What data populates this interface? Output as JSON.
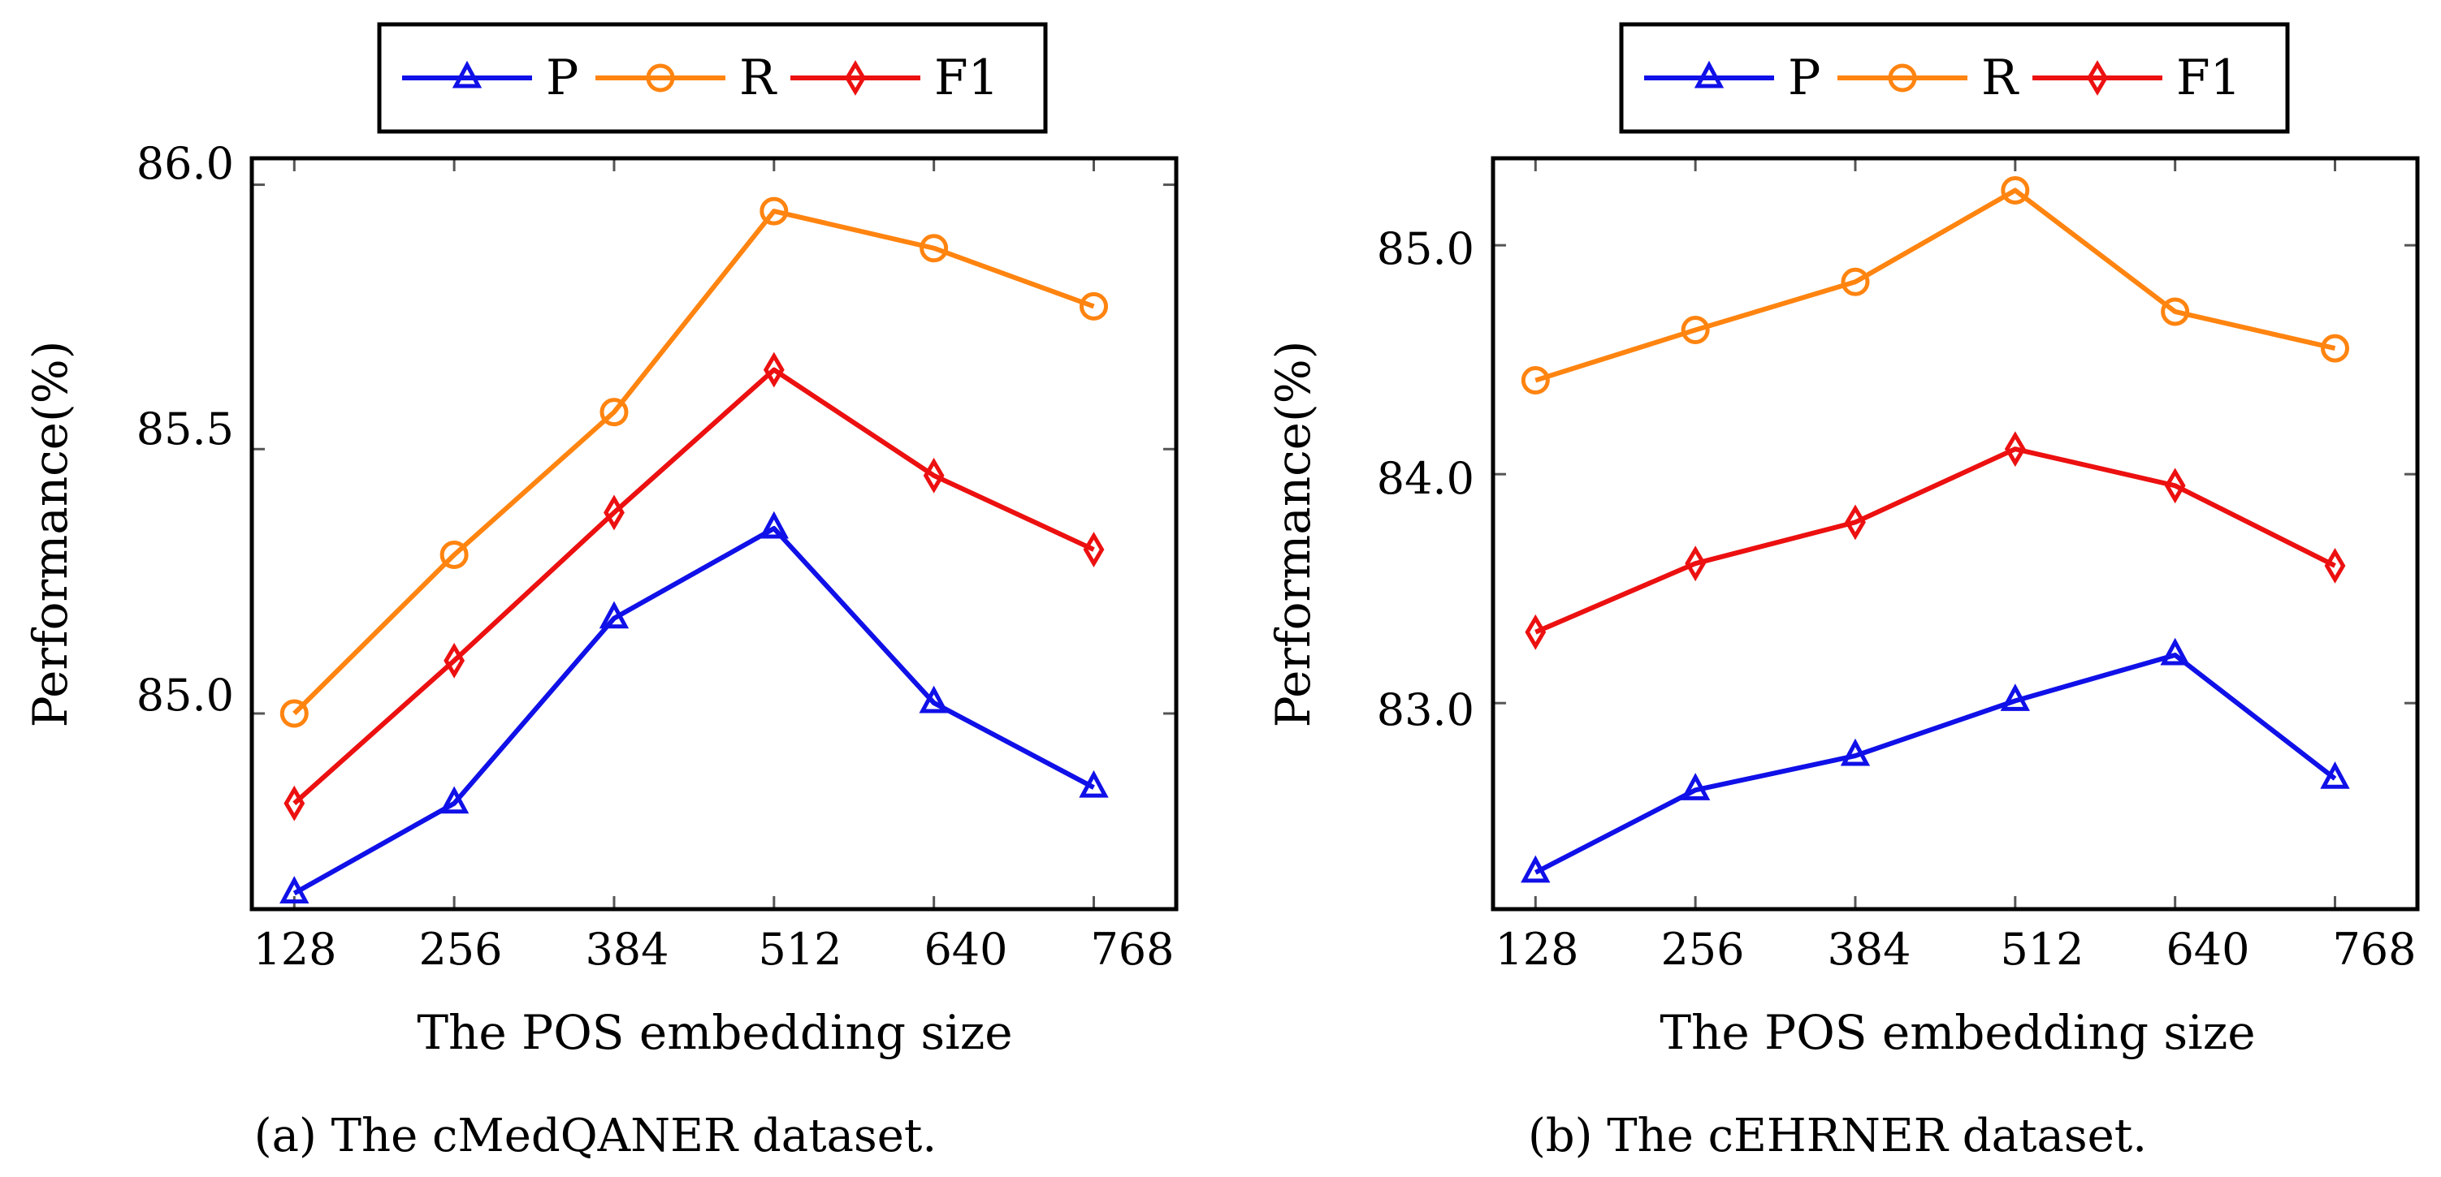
{
  "colors": {
    "P": "#1010e8",
    "R": "#ff8410",
    "F1": "#ec1010",
    "frame": "#000000",
    "tickmark": "#555555"
  },
  "chart_data": [
    {
      "type": "line",
      "caption": "(a) The cMedQANER dataset.",
      "xlabel": "The POS embedding size",
      "ylabel": "Performance(%)",
      "categories": [
        "128",
        "256",
        "384",
        "512",
        "640",
        "768"
      ],
      "x": [
        128,
        256,
        384,
        512,
        640,
        768
      ],
      "xlim": [
        94,
        834
      ],
      "ylim": [
        84.63,
        86.05
      ],
      "yticks": [
        85.0,
        85.5,
        86.0
      ],
      "ytick_labels": [
        "85.0",
        "85.5",
        "86.0"
      ],
      "legend": {
        "placement": "top-center",
        "entries": [
          "P",
          "R",
          "F1"
        ]
      },
      "series": [
        {
          "name": "P",
          "marker": "triangle",
          "values": [
            84.66,
            84.83,
            85.18,
            85.35,
            85.02,
            84.86
          ]
        },
        {
          "name": "R",
          "marker": "circle",
          "values": [
            85.0,
            85.3,
            85.57,
            85.95,
            85.88,
            85.77
          ]
        },
        {
          "name": "F1",
          "marker": "diamond",
          "values": [
            84.83,
            85.1,
            85.38,
            85.65,
            85.45,
            85.31
          ]
        }
      ]
    },
    {
      "type": "line",
      "caption": "(b) The cEHRNER dataset.",
      "xlabel": "The POS embedding size",
      "ylabel": "Performance(%)",
      "categories": [
        "128",
        "256",
        "384",
        "512",
        "640",
        "768"
      ],
      "x": [
        128,
        256,
        384,
        512,
        640,
        768
      ],
      "xlim": [
        94,
        834
      ],
      "ylim": [
        82.1,
        85.38
      ],
      "yticks": [
        83.0,
        84.0,
        85.0
      ],
      "ytick_labels": [
        "83.0",
        "84.0",
        "85.0"
      ],
      "legend": {
        "placement": "top-center",
        "entries": [
          "P",
          "R",
          "F1"
        ]
      },
      "series": [
        {
          "name": "P",
          "marker": "triangle",
          "values": [
            82.26,
            82.62,
            82.77,
            83.01,
            83.21,
            82.67
          ]
        },
        {
          "name": "R",
          "marker": "circle",
          "values": [
            84.41,
            84.63,
            84.84,
            85.24,
            84.71,
            84.55
          ]
        },
        {
          "name": "F1",
          "marker": "diamond",
          "values": [
            83.31,
            83.61,
            83.79,
            84.11,
            83.95,
            83.6
          ]
        }
      ]
    }
  ]
}
